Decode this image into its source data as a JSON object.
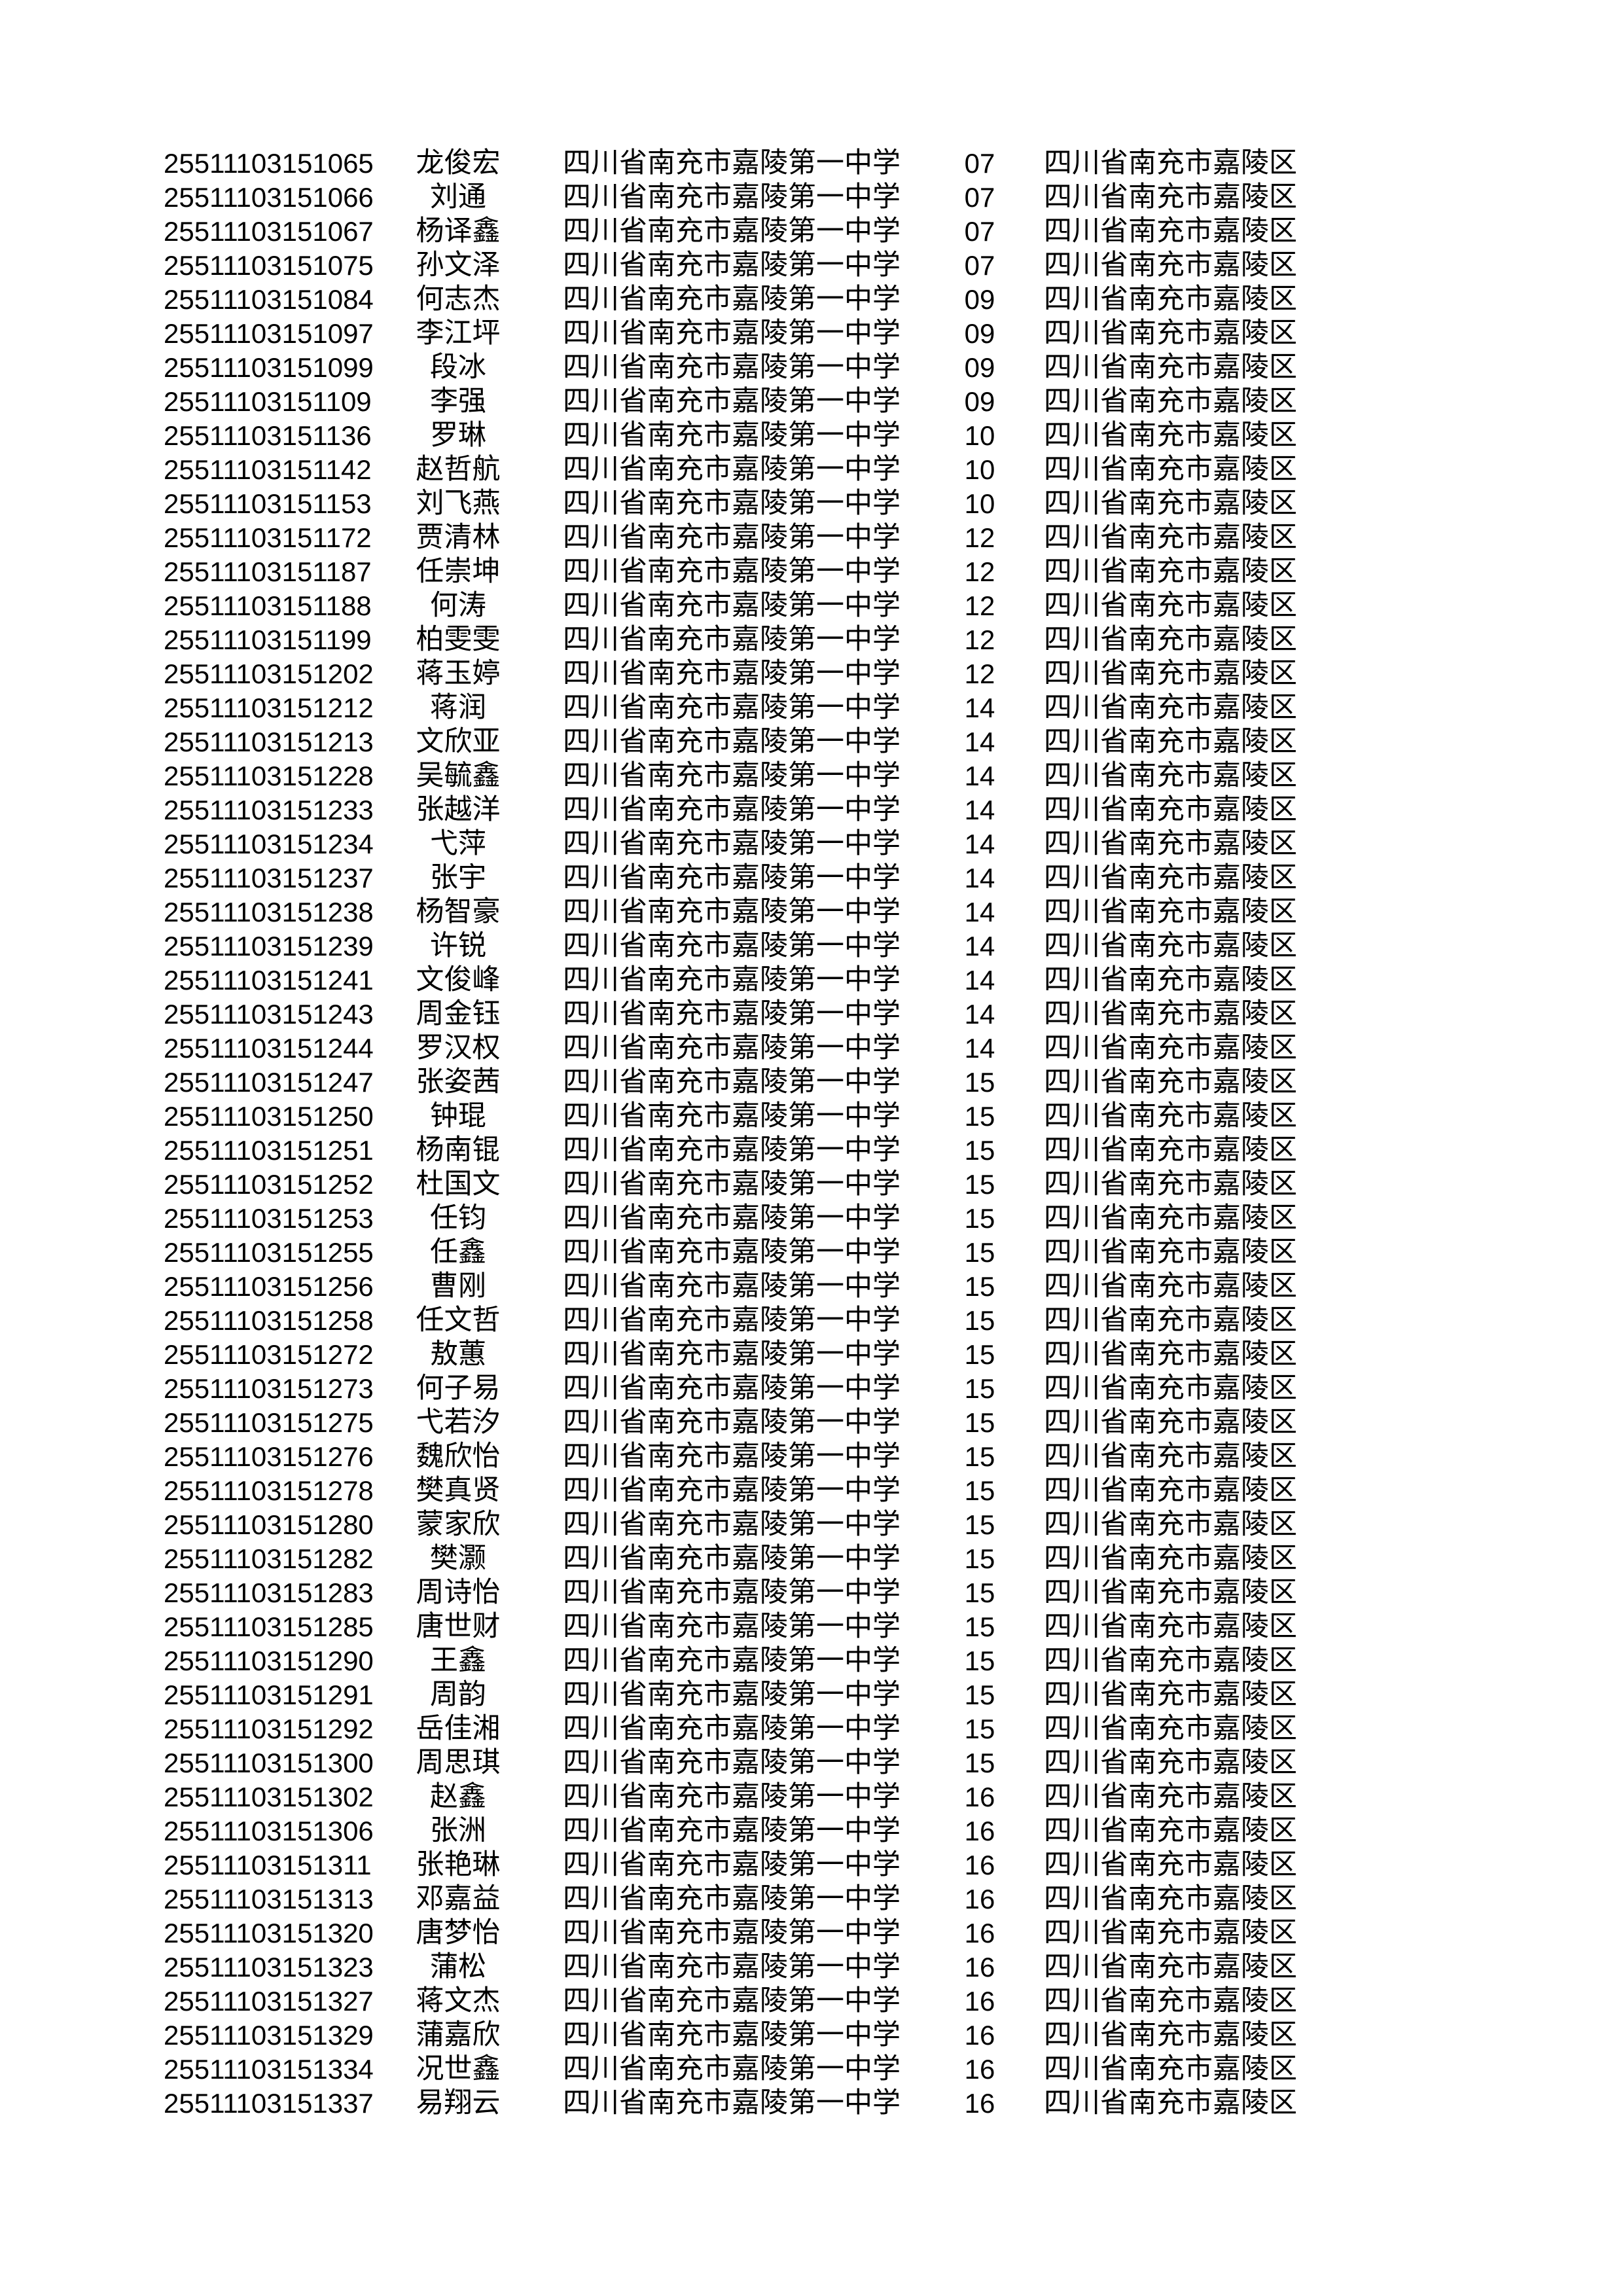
{
  "page": {
    "background_color": "#ffffff",
    "text_color": "#000000"
  },
  "table": {
    "rows": [
      {
        "id": "25511103151065",
        "name": "龙俊宏",
        "school": "四川省南充市嘉陵第一中学",
        "code": "07",
        "district": "四川省南充市嘉陵区"
      },
      {
        "id": "25511103151066",
        "name": "刘通",
        "school": "四川省南充市嘉陵第一中学",
        "code": "07",
        "district": "四川省南充市嘉陵区"
      },
      {
        "id": "25511103151067",
        "name": "杨译鑫",
        "school": "四川省南充市嘉陵第一中学",
        "code": "07",
        "district": "四川省南充市嘉陵区"
      },
      {
        "id": "25511103151075",
        "name": "孙文泽",
        "school": "四川省南充市嘉陵第一中学",
        "code": "07",
        "district": "四川省南充市嘉陵区"
      },
      {
        "id": "25511103151084",
        "name": "何志杰",
        "school": "四川省南充市嘉陵第一中学",
        "code": "09",
        "district": "四川省南充市嘉陵区"
      },
      {
        "id": "25511103151097",
        "name": "李江坪",
        "school": "四川省南充市嘉陵第一中学",
        "code": "09",
        "district": "四川省南充市嘉陵区"
      },
      {
        "id": "25511103151099",
        "name": "段冰",
        "school": "四川省南充市嘉陵第一中学",
        "code": "09",
        "district": "四川省南充市嘉陵区"
      },
      {
        "id": "25511103151109",
        "name": "李强",
        "school": "四川省南充市嘉陵第一中学",
        "code": "09",
        "district": "四川省南充市嘉陵区"
      },
      {
        "id": "25511103151136",
        "name": "罗琳",
        "school": "四川省南充市嘉陵第一中学",
        "code": "10",
        "district": "四川省南充市嘉陵区"
      },
      {
        "id": "25511103151142",
        "name": "赵哲航",
        "school": "四川省南充市嘉陵第一中学",
        "code": "10",
        "district": "四川省南充市嘉陵区"
      },
      {
        "id": "25511103151153",
        "name": "刘飞燕",
        "school": "四川省南充市嘉陵第一中学",
        "code": "10",
        "district": "四川省南充市嘉陵区"
      },
      {
        "id": "25511103151172",
        "name": "贾清林",
        "school": "四川省南充市嘉陵第一中学",
        "code": "12",
        "district": "四川省南充市嘉陵区"
      },
      {
        "id": "25511103151187",
        "name": "任崇坤",
        "school": "四川省南充市嘉陵第一中学",
        "code": "12",
        "district": "四川省南充市嘉陵区"
      },
      {
        "id": "25511103151188",
        "name": "何涛",
        "school": "四川省南充市嘉陵第一中学",
        "code": "12",
        "district": "四川省南充市嘉陵区"
      },
      {
        "id": "25511103151199",
        "name": "柏雯雯",
        "school": "四川省南充市嘉陵第一中学",
        "code": "12",
        "district": "四川省南充市嘉陵区"
      },
      {
        "id": "25511103151202",
        "name": "蒋玉婷",
        "school": "四川省南充市嘉陵第一中学",
        "code": "12",
        "district": "四川省南充市嘉陵区"
      },
      {
        "id": "25511103151212",
        "name": "蒋润",
        "school": "四川省南充市嘉陵第一中学",
        "code": "14",
        "district": "四川省南充市嘉陵区"
      },
      {
        "id": "25511103151213",
        "name": "文欣亚",
        "school": "四川省南充市嘉陵第一中学",
        "code": "14",
        "district": "四川省南充市嘉陵区"
      },
      {
        "id": "25511103151228",
        "name": "吴毓鑫",
        "school": "四川省南充市嘉陵第一中学",
        "code": "14",
        "district": "四川省南充市嘉陵区"
      },
      {
        "id": "25511103151233",
        "name": "张越洋",
        "school": "四川省南充市嘉陵第一中学",
        "code": "14",
        "district": "四川省南充市嘉陵区"
      },
      {
        "id": "25511103151234",
        "name": "弋萍",
        "school": "四川省南充市嘉陵第一中学",
        "code": "14",
        "district": "四川省南充市嘉陵区"
      },
      {
        "id": "25511103151237",
        "name": "张宇",
        "school": "四川省南充市嘉陵第一中学",
        "code": "14",
        "district": "四川省南充市嘉陵区"
      },
      {
        "id": "25511103151238",
        "name": "杨智豪",
        "school": "四川省南充市嘉陵第一中学",
        "code": "14",
        "district": "四川省南充市嘉陵区"
      },
      {
        "id": "25511103151239",
        "name": "许锐",
        "school": "四川省南充市嘉陵第一中学",
        "code": "14",
        "district": "四川省南充市嘉陵区"
      },
      {
        "id": "25511103151241",
        "name": "文俊峰",
        "school": "四川省南充市嘉陵第一中学",
        "code": "14",
        "district": "四川省南充市嘉陵区"
      },
      {
        "id": "25511103151243",
        "name": "周金钰",
        "school": "四川省南充市嘉陵第一中学",
        "code": "14",
        "district": "四川省南充市嘉陵区"
      },
      {
        "id": "25511103151244",
        "name": "罗汉权",
        "school": "四川省南充市嘉陵第一中学",
        "code": "14",
        "district": "四川省南充市嘉陵区"
      },
      {
        "id": "25511103151247",
        "name": "张姿茜",
        "school": "四川省南充市嘉陵第一中学",
        "code": "15",
        "district": "四川省南充市嘉陵区"
      },
      {
        "id": "25511103151250",
        "name": "钟琨",
        "school": "四川省南充市嘉陵第一中学",
        "code": "15",
        "district": "四川省南充市嘉陵区"
      },
      {
        "id": "25511103151251",
        "name": "杨南锟",
        "school": "四川省南充市嘉陵第一中学",
        "code": "15",
        "district": "四川省南充市嘉陵区"
      },
      {
        "id": "25511103151252",
        "name": "杜国文",
        "school": "四川省南充市嘉陵第一中学",
        "code": "15",
        "district": "四川省南充市嘉陵区"
      },
      {
        "id": "25511103151253",
        "name": "任钧",
        "school": "四川省南充市嘉陵第一中学",
        "code": "15",
        "district": "四川省南充市嘉陵区"
      },
      {
        "id": "25511103151255",
        "name": "任鑫",
        "school": "四川省南充市嘉陵第一中学",
        "code": "15",
        "district": "四川省南充市嘉陵区"
      },
      {
        "id": "25511103151256",
        "name": "曹刚",
        "school": "四川省南充市嘉陵第一中学",
        "code": "15",
        "district": "四川省南充市嘉陵区"
      },
      {
        "id": "25511103151258",
        "name": "任文哲",
        "school": "四川省南充市嘉陵第一中学",
        "code": "15",
        "district": "四川省南充市嘉陵区"
      },
      {
        "id": "25511103151272",
        "name": "敖蕙",
        "school": "四川省南充市嘉陵第一中学",
        "code": "15",
        "district": "四川省南充市嘉陵区"
      },
      {
        "id": "25511103151273",
        "name": "何子易",
        "school": "四川省南充市嘉陵第一中学",
        "code": "15",
        "district": "四川省南充市嘉陵区"
      },
      {
        "id": "25511103151275",
        "name": "弋若汐",
        "school": "四川省南充市嘉陵第一中学",
        "code": "15",
        "district": "四川省南充市嘉陵区"
      },
      {
        "id": "25511103151276",
        "name": "魏欣怡",
        "school": "四川省南充市嘉陵第一中学",
        "code": "15",
        "district": "四川省南充市嘉陵区"
      },
      {
        "id": "25511103151278",
        "name": "樊真贤",
        "school": "四川省南充市嘉陵第一中学",
        "code": "15",
        "district": "四川省南充市嘉陵区"
      },
      {
        "id": "25511103151280",
        "name": "蒙家欣",
        "school": "四川省南充市嘉陵第一中学",
        "code": "15",
        "district": "四川省南充市嘉陵区"
      },
      {
        "id": "25511103151282",
        "name": "樊灏",
        "school": "四川省南充市嘉陵第一中学",
        "code": "15",
        "district": "四川省南充市嘉陵区"
      },
      {
        "id": "25511103151283",
        "name": "周诗怡",
        "school": "四川省南充市嘉陵第一中学",
        "code": "15",
        "district": "四川省南充市嘉陵区"
      },
      {
        "id": "25511103151285",
        "name": "唐世财",
        "school": "四川省南充市嘉陵第一中学",
        "code": "15",
        "district": "四川省南充市嘉陵区"
      },
      {
        "id": "25511103151290",
        "name": "王鑫",
        "school": "四川省南充市嘉陵第一中学",
        "code": "15",
        "district": "四川省南充市嘉陵区"
      },
      {
        "id": "25511103151291",
        "name": "周韵",
        "school": "四川省南充市嘉陵第一中学",
        "code": "15",
        "district": "四川省南充市嘉陵区"
      },
      {
        "id": "25511103151292",
        "name": "岳佳湘",
        "school": "四川省南充市嘉陵第一中学",
        "code": "15",
        "district": "四川省南充市嘉陵区"
      },
      {
        "id": "25511103151300",
        "name": "周思琪",
        "school": "四川省南充市嘉陵第一中学",
        "code": "15",
        "district": "四川省南充市嘉陵区"
      },
      {
        "id": "25511103151302",
        "name": "赵鑫",
        "school": "四川省南充市嘉陵第一中学",
        "code": "16",
        "district": "四川省南充市嘉陵区"
      },
      {
        "id": "25511103151306",
        "name": "张洲",
        "school": "四川省南充市嘉陵第一中学",
        "code": "16",
        "district": "四川省南充市嘉陵区"
      },
      {
        "id": "25511103151311",
        "name": "张艳琳",
        "school": "四川省南充市嘉陵第一中学",
        "code": "16",
        "district": "四川省南充市嘉陵区"
      },
      {
        "id": "25511103151313",
        "name": "邓嘉益",
        "school": "四川省南充市嘉陵第一中学",
        "code": "16",
        "district": "四川省南充市嘉陵区"
      },
      {
        "id": "25511103151320",
        "name": "唐梦怡",
        "school": "四川省南充市嘉陵第一中学",
        "code": "16",
        "district": "四川省南充市嘉陵区"
      },
      {
        "id": "25511103151323",
        "name": "蒲松",
        "school": "四川省南充市嘉陵第一中学",
        "code": "16",
        "district": "四川省南充市嘉陵区"
      },
      {
        "id": "25511103151327",
        "name": "蒋文杰",
        "school": "四川省南充市嘉陵第一中学",
        "code": "16",
        "district": "四川省南充市嘉陵区"
      },
      {
        "id": "25511103151329",
        "name": "蒲嘉欣",
        "school": "四川省南充市嘉陵第一中学",
        "code": "16",
        "district": "四川省南充市嘉陵区"
      },
      {
        "id": "25511103151334",
        "name": "况世鑫",
        "school": "四川省南充市嘉陵第一中学",
        "code": "16",
        "district": "四川省南充市嘉陵区"
      },
      {
        "id": "25511103151337",
        "name": "易翔云",
        "school": "四川省南充市嘉陵第一中学",
        "code": "16",
        "district": "四川省南充市嘉陵区"
      }
    ]
  }
}
